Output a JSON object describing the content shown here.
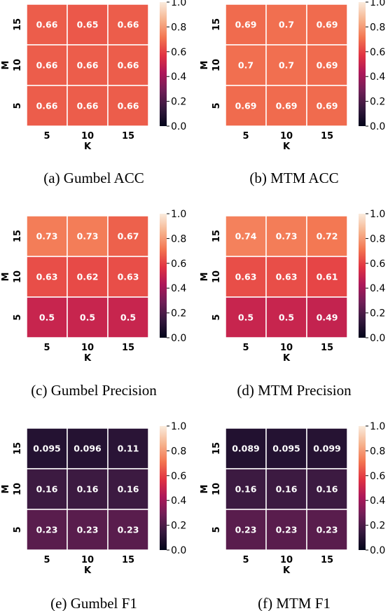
{
  "chart_data": [
    {
      "type": "heatmap",
      "caption": "(a)  Gumbel ACC",
      "xlabel": "K",
      "ylabel": "M",
      "x_categories": [
        "5",
        "10",
        "15"
      ],
      "y_categories": [
        "15",
        "10",
        "5"
      ],
      "values": [
        [
          0.66,
          0.65,
          0.66
        ],
        [
          0.66,
          0.66,
          0.66
        ],
        [
          0.66,
          0.66,
          0.66
        ]
      ],
      "labels": [
        [
          "0.66",
          "0.65",
          "0.66"
        ],
        [
          "0.66",
          "0.66",
          "0.66"
        ],
        [
          "0.66",
          "0.66",
          "0.66"
        ]
      ],
      "colorbar": {
        "range": [
          0.0,
          1.0
        ],
        "ticks": [
          "0.0",
          "0.2",
          "0.4",
          "0.6",
          "0.8",
          "1.0"
        ]
      }
    },
    {
      "type": "heatmap",
      "caption": "(b)  MTM ACC",
      "xlabel": "K",
      "ylabel": "M",
      "x_categories": [
        "5",
        "10",
        "15"
      ],
      "y_categories": [
        "15",
        "10",
        "5"
      ],
      "values": [
        [
          0.69,
          0.7,
          0.69
        ],
        [
          0.7,
          0.7,
          0.69
        ],
        [
          0.69,
          0.69,
          0.69
        ]
      ],
      "labels": [
        [
          "0.69",
          "0.7",
          "0.69"
        ],
        [
          "0.7",
          "0.7",
          "0.69"
        ],
        [
          "0.69",
          "0.69",
          "0.69"
        ]
      ],
      "colorbar": {
        "range": [
          0.0,
          1.0
        ],
        "ticks": [
          "0.0",
          "0.2",
          "0.4",
          "0.6",
          "0.8",
          "1.0"
        ]
      }
    },
    {
      "type": "heatmap",
      "caption": "(c)  Gumbel Precision",
      "xlabel": "K",
      "ylabel": "M",
      "x_categories": [
        "5",
        "10",
        "15"
      ],
      "y_categories": [
        "15",
        "10",
        "5"
      ],
      "values": [
        [
          0.73,
          0.73,
          0.67
        ],
        [
          0.63,
          0.62,
          0.63
        ],
        [
          0.5,
          0.5,
          0.5
        ]
      ],
      "labels": [
        [
          "0.73",
          "0.73",
          "0.67"
        ],
        [
          "0.63",
          "0.62",
          "0.63"
        ],
        [
          "0.5",
          "0.5",
          "0.5"
        ]
      ],
      "colorbar": {
        "range": [
          0.0,
          1.0
        ],
        "ticks": [
          "0.0",
          "0.2",
          "0.4",
          "0.6",
          "0.8",
          "1.0"
        ]
      }
    },
    {
      "type": "heatmap",
      "caption": "(d)  MTM Precision",
      "xlabel": "K",
      "ylabel": "M",
      "x_categories": [
        "5",
        "10",
        "15"
      ],
      "y_categories": [
        "15",
        "10",
        "5"
      ],
      "values": [
        [
          0.74,
          0.73,
          0.72
        ],
        [
          0.63,
          0.63,
          0.61
        ],
        [
          0.5,
          0.5,
          0.49
        ]
      ],
      "labels": [
        [
          "0.74",
          "0.73",
          "0.72"
        ],
        [
          "0.63",
          "0.63",
          "0.61"
        ],
        [
          "0.5",
          "0.5",
          "0.49"
        ]
      ],
      "colorbar": {
        "range": [
          0.0,
          1.0
        ],
        "ticks": [
          "0.0",
          "0.2",
          "0.4",
          "0.6",
          "0.8",
          "1.0"
        ]
      }
    },
    {
      "type": "heatmap",
      "caption": "(e)  Gumbel F1",
      "xlabel": "K",
      "ylabel": "M",
      "x_categories": [
        "5",
        "10",
        "15"
      ],
      "y_categories": [
        "15",
        "10",
        "5"
      ],
      "values": [
        [
          0.095,
          0.096,
          0.11
        ],
        [
          0.16,
          0.16,
          0.16
        ],
        [
          0.23,
          0.23,
          0.23
        ]
      ],
      "labels": [
        [
          "0.095",
          "0.096",
          "0.11"
        ],
        [
          "0.16",
          "0.16",
          "0.16"
        ],
        [
          "0.23",
          "0.23",
          "0.23"
        ]
      ],
      "colorbar": {
        "range": [
          0.0,
          1.0
        ],
        "ticks": [
          "0.0",
          "0.2",
          "0.4",
          "0.6",
          "0.8",
          "1.0"
        ]
      }
    },
    {
      "type": "heatmap",
      "caption": "(f)  MTM F1",
      "xlabel": "K",
      "ylabel": "M",
      "x_categories": [
        "5",
        "10",
        "15"
      ],
      "y_categories": [
        "15",
        "10",
        "5"
      ],
      "values": [
        [
          0.089,
          0.095,
          0.099
        ],
        [
          0.16,
          0.16,
          0.16
        ],
        [
          0.23,
          0.23,
          0.23
        ]
      ],
      "labels": [
        [
          "0.089",
          "0.095",
          "0.099"
        ],
        [
          "0.16",
          "0.16",
          "0.16"
        ],
        [
          "0.23",
          "0.23",
          "0.23"
        ]
      ],
      "colorbar": {
        "range": [
          0.0,
          1.0
        ],
        "ticks": [
          "0.0",
          "0.2",
          "0.4",
          "0.6",
          "0.8",
          "1.0"
        ]
      }
    }
  ],
  "colormap": {
    "name": "rocket",
    "stops": [
      "#03051a",
      "#35193e",
      "#701f57",
      "#ad1759",
      "#e13342",
      "#f37651",
      "#f6b48f",
      "#faebdd"
    ]
  }
}
